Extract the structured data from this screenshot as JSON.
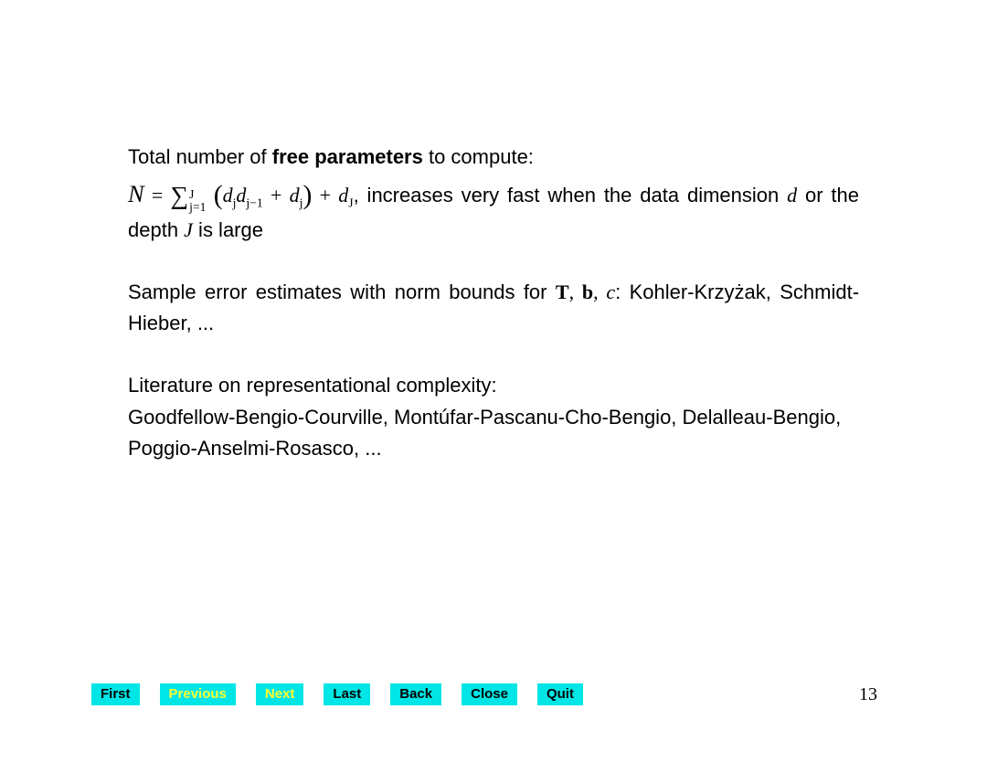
{
  "body": {
    "p1": {
      "lead": "Total number of ",
      "bold": "free parameters",
      "tail": " to compute:",
      "eq_after": ", increases very fast when the data dimension ",
      "d": "d",
      "or_depth": " or the depth ",
      "J": "J",
      "large": " is large",
      "sym_N": "N",
      "sym_eq": " = ",
      "sym_sum": "∑",
      "sum_sup": "J",
      "sum_sub": "j=1",
      "lparen": "(",
      "term_dj": "d",
      "term_dj_idx": "j",
      "term_djm1": "d",
      "term_djm1_idx": "j−1",
      "plus": " + ",
      "term_dj2": "d",
      "term_dj2_idx": "j",
      "rparen": ")",
      "plus2": " + ",
      "term_dJ": "d",
      "term_dJ_idx": "J"
    },
    "p2": {
      "text_a": "Sample error estimates with norm bounds for ",
      "Tb_c_T": "T",
      "comma1": ", ",
      "Tb_c_b": "b",
      "comma2": ", ",
      "Tb_c_c": "c",
      "text_b": ": Kohler-Krzyżak, Schmidt-Hieber, ..."
    },
    "p3": {
      "line1": "Literature on representational complexity:",
      "line2": "Goodfellow-Bengio-Courville, Montúfar-Pascanu-Cho-Bengio, Delalleau-Bengio, Poggio-Anselmi-Rosasco, ..."
    }
  },
  "nav": {
    "buttons": [
      {
        "label": "First",
        "bg": "#00e5e5",
        "fg": "#000000"
      },
      {
        "label": "Previous",
        "bg": "#00e5e5",
        "fg": "#ffff33"
      },
      {
        "label": "Next",
        "bg": "#00e5e5",
        "fg": "#ffff33"
      },
      {
        "label": "Last",
        "bg": "#00e5e5",
        "fg": "#000000"
      },
      {
        "label": "Back",
        "bg": "#00e5e5",
        "fg": "#000000"
      },
      {
        "label": "Close",
        "bg": "#00e5e5",
        "fg": "#000000"
      },
      {
        "label": "Quit",
        "bg": "#00e5e5",
        "fg": "#000000"
      }
    ]
  },
  "page_number": "13"
}
